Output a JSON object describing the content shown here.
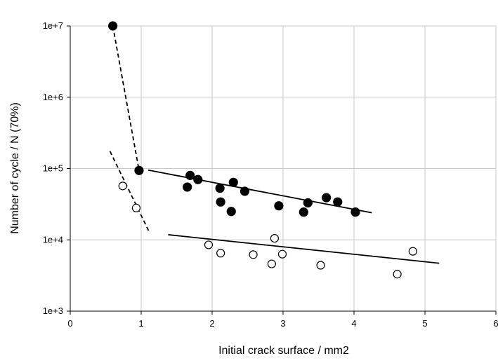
{
  "chart_data": {
    "type": "scatter",
    "title": "",
    "xlabel": "Initial crack surface  / mm2",
    "ylabel": "Number of cycle  / N (70%)",
    "xlim": [
      0,
      6
    ],
    "ylim": [
      1000,
      10000000
    ],
    "yscale": "log",
    "grid": true,
    "x_ticks": [
      0,
      1,
      2,
      3,
      4,
      5,
      6
    ],
    "x_tick_labels": [
      "0",
      "1",
      "2",
      "3",
      "4",
      "5",
      "6"
    ],
    "y_ticks": [
      1000,
      10000,
      100000,
      1000000,
      10000000
    ],
    "y_tick_labels": [
      "1e+3",
      "1e+4",
      "1e+5",
      "1e+6",
      "1e+7"
    ],
    "series": [
      {
        "marker": "filled-circle",
        "color": "#000000",
        "points": [
          [
            0.6,
            10000000
          ],
          [
            0.97,
            94000
          ],
          [
            1.65,
            55000
          ],
          [
            1.69,
            80000
          ],
          [
            1.8,
            70000
          ],
          [
            2.11,
            53000
          ],
          [
            2.12,
            34000
          ],
          [
            2.27,
            25000
          ],
          [
            2.3,
            64000
          ],
          [
            2.46,
            48000
          ],
          [
            2.94,
            30000
          ],
          [
            3.29,
            24500
          ],
          [
            3.35,
            33000
          ],
          [
            3.61,
            39000
          ],
          [
            3.77,
            34000
          ],
          [
            4.02,
            24500
          ]
        ]
      },
      {
        "marker": "open-circle",
        "color": "#000000",
        "points": [
          [
            0.74,
            57000
          ],
          [
            0.93,
            28000
          ],
          [
            1.95,
            8500
          ],
          [
            2.12,
            6500
          ],
          [
            2.58,
            6200
          ],
          [
            2.84,
            4600
          ],
          [
            2.88,
            10500
          ],
          [
            2.99,
            6300
          ],
          [
            3.53,
            4400
          ],
          [
            4.61,
            3300
          ],
          [
            4.83,
            6900
          ]
        ]
      }
    ],
    "trend_lines": [
      {
        "style": "dashed",
        "points": [
          [
            0.6,
            10000000
          ],
          [
            0.97,
            94000
          ]
        ]
      },
      {
        "style": "solid",
        "points": [
          [
            1.1,
            95000
          ],
          [
            4.25,
            24000
          ]
        ]
      },
      {
        "style": "dashed",
        "points": [
          [
            0.56,
            175000
          ],
          [
            1.12,
            12500
          ]
        ]
      },
      {
        "style": "solid",
        "points": [
          [
            1.38,
            11800
          ],
          [
            5.2,
            4700
          ]
        ]
      }
    ]
  }
}
